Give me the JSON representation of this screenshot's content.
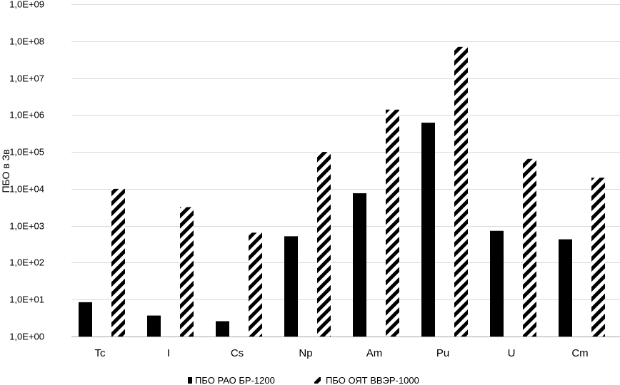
{
  "chart_data": {
    "type": "bar",
    "yscale": "log",
    "ylabel": "ПБО в Зв",
    "xlabel": "",
    "ylim": [
      1,
      1000000000
    ],
    "ytick_values": [
      1,
      10,
      100,
      1000,
      10000,
      100000,
      1000000,
      10000000,
      100000000,
      1000000000
    ],
    "ytick_labels": [
      "1,0E+00",
      "1,0E+01",
      "1,0E+02",
      "1,0E+03",
      "1,0E+04",
      "1,0E+05",
      "1,0E+06",
      "1,0E+07",
      "1,0E+08",
      "1,0E+09"
    ],
    "grid": true,
    "legend_position": "bottom",
    "categories": [
      "Tc",
      "I",
      "Cs",
      "Np",
      "Am",
      "Pu",
      "U",
      "Cm"
    ],
    "series": [
      {
        "name": "ПБО РАО БР-1200",
        "style": "solid",
        "color": "#000000",
        "values": [
          8.5,
          3.7,
          2.6,
          520,
          7600,
          620000,
          730,
          430
        ]
      },
      {
        "name": "ПБО ОЯТ ВВЭР-1000",
        "style": "hatched",
        "color": "#000000",
        "values": [
          10000,
          3200,
          650,
          100000,
          1400000,
          70000000,
          65000,
          20000
        ]
      }
    ]
  }
}
